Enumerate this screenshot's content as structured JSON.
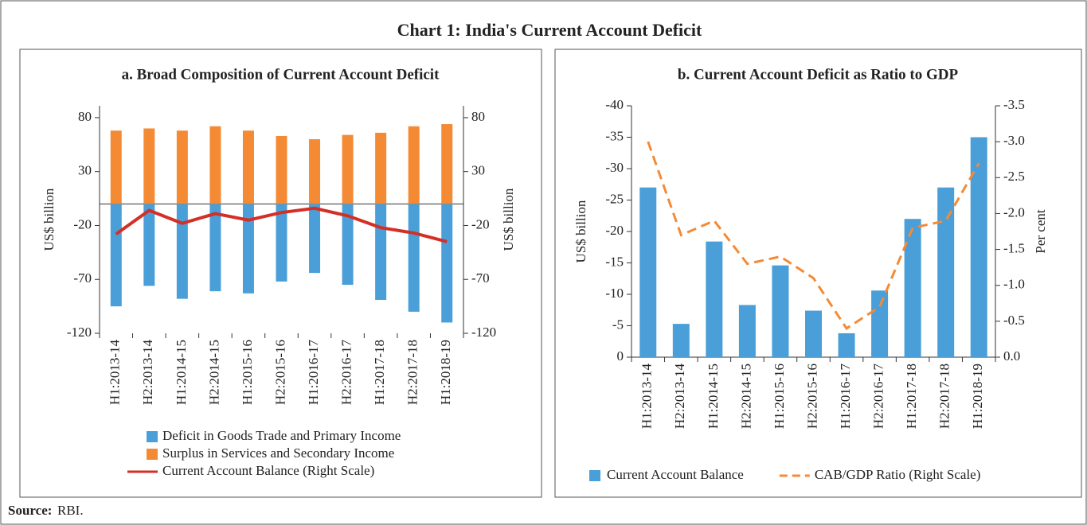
{
  "title": "Chart 1: India's Current Account Deficit",
  "chart_data": [
    {
      "type": "bar",
      "title": "a. Broad Composition of Current Account Deficit",
      "categories": [
        "H1:2013-14",
        "H2:2013-14",
        "H1:2014-15",
        "H2:2014-15",
        "H1:2015-16",
        "H2:2015-16",
        "H1:2016-17",
        "H2:2016-17",
        "H1:2017-18",
        "H2:2017-18",
        "H1:2018-19"
      ],
      "series": [
        {
          "name": "Deficit in Goods Trade and Primary Income",
          "type": "bar",
          "color": "#4a9fd8",
          "values": [
            -95,
            -76,
            -88,
            -81,
            -83,
            -72,
            -64,
            -75,
            -89,
            -100,
            -110
          ]
        },
        {
          "name": "Surplus in Services and Secondary Income",
          "type": "bar",
          "color": "#f58a35",
          "values": [
            68,
            70,
            68,
            72,
            68,
            63,
            60,
            64,
            66,
            72,
            74
          ]
        },
        {
          "name": "Current Account Balance (Right Scale)",
          "type": "line",
          "line_style": "solid",
          "color": "#d42f27",
          "axis": "y2",
          "values": [
            -28,
            -6,
            -18,
            -9,
            -15,
            -8,
            -4,
            -11,
            -22,
            -27,
            -35
          ]
        }
      ],
      "ylabel": "US$ billion",
      "y2label": "US$ billion",
      "ylim": [
        -120,
        91
      ],
      "yticks": [
        -120,
        -70,
        -20,
        30,
        80
      ],
      "y2lim": [
        -120,
        91
      ],
      "y2ticks": [
        -120,
        -70,
        -20,
        30,
        80
      ],
      "legend": "bottom"
    },
    {
      "type": "bar",
      "title": "b. Current Account Deficit as Ratio to GDP",
      "categories": [
        "H1:2013-14",
        "H2:2013-14",
        "H1:2014-15",
        "H2:2014-15",
        "H1:2015-16",
        "H2:2015-16",
        "H1:2016-17",
        "H2:2016-17",
        "H1:2017-18",
        "H2:2017-18",
        "H1:2018-19"
      ],
      "series": [
        {
          "name": "Current Account Balance",
          "type": "bar",
          "color": "#4a9fd8",
          "values": [
            -27,
            -5.3,
            -18.4,
            -8.3,
            -14.6,
            -7.4,
            -3.8,
            -10.6,
            -22,
            -27,
            -35
          ]
        },
        {
          "name": "CAB/GDP Ratio (Right Scale)",
          "type": "line",
          "line_style": "dashed",
          "color": "#f58a35",
          "axis": "y2",
          "values": [
            -3.0,
            -1.7,
            -1.9,
            -1.3,
            -1.4,
            -1.1,
            -0.4,
            -0.7,
            -1.8,
            -1.9,
            -2.7
          ]
        }
      ],
      "ylabel": "US$ billion",
      "y2label": "Per cent",
      "ylim": [
        0,
        -40
      ],
      "yticks": [
        0,
        -5,
        -10,
        -15,
        -20,
        -25,
        -30,
        -35,
        -40
      ],
      "y2lim": [
        0,
        -3.5
      ],
      "y2ticks": [
        {
          "value": 0,
          "label": "0.0"
        },
        -0.5,
        {
          "value": -1,
          "label": "-1.0"
        },
        -1.5,
        {
          "value": -2,
          "label": "-2.0"
        },
        -2.5,
        {
          "value": -3,
          "label": "-3.0"
        },
        -3.5
      ],
      "legend": "bottom"
    }
  ],
  "source": {
    "label": "Source:",
    "text": "RBI."
  }
}
